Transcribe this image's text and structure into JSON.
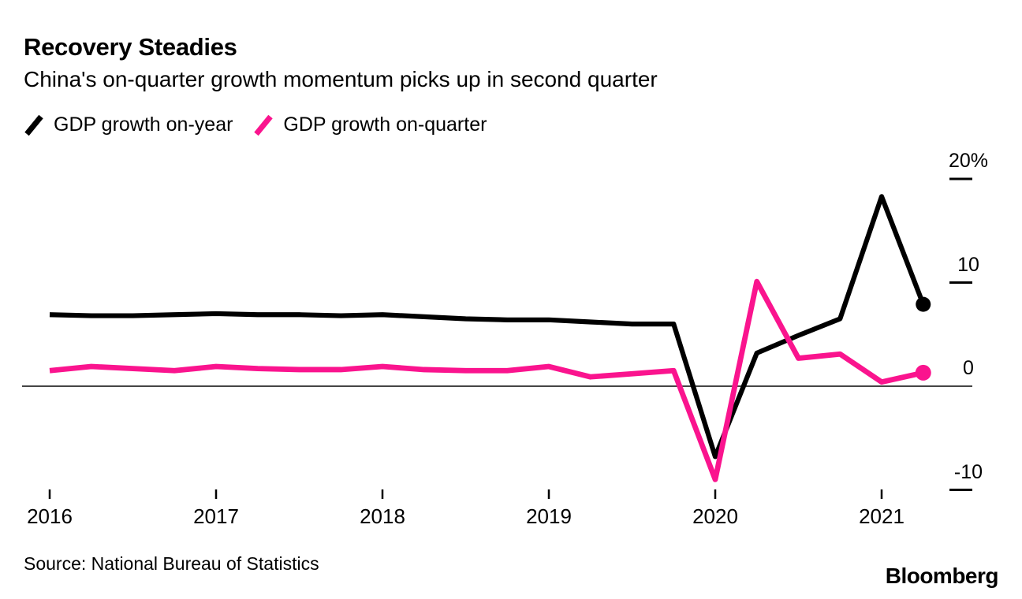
{
  "header": {
    "title": "Recovery Steadies",
    "subtitle": "China's on-quarter growth momentum picks up in second quarter"
  },
  "legend": [
    {
      "label": "GDP growth on-year",
      "color": "#000000"
    },
    {
      "label": "GDP growth on-quarter",
      "color": "#fa148e"
    }
  ],
  "footer": {
    "source": "Source: National Bureau of Statistics",
    "brand": "Bloomberg"
  },
  "colors": {
    "on_year_line": "#000000",
    "on_quarter_line": "#fa148e",
    "zero_line": "#454545",
    "tick": "#000000"
  },
  "chart_data": {
    "type": "line",
    "title": "Recovery Steadies",
    "subtitle": "China's on-quarter growth momentum picks up in second quarter",
    "x": [
      "2016 Q1",
      "2016 Q2",
      "2016 Q3",
      "2016 Q4",
      "2017 Q1",
      "2017 Q2",
      "2017 Q3",
      "2017 Q4",
      "2018 Q1",
      "2018 Q2",
      "2018 Q3",
      "2018 Q4",
      "2019 Q1",
      "2019 Q2",
      "2019 Q3",
      "2019 Q4",
      "2020 Q1",
      "2020 Q2",
      "2020 Q3",
      "2020 Q4",
      "2021 Q1",
      "2021 Q2"
    ],
    "series": [
      {
        "name": "GDP growth on-year",
        "color": "#000000",
        "end_dot": true,
        "values": [
          6.9,
          6.8,
          6.8,
          6.9,
          7.0,
          6.9,
          6.9,
          6.8,
          6.9,
          6.7,
          6.5,
          6.4,
          6.4,
          6.2,
          6.0,
          6.0,
          -6.8,
          3.2,
          4.9,
          6.5,
          18.3,
          7.9
        ]
      },
      {
        "name": "GDP growth on-quarter",
        "color": "#fa148e",
        "end_dot": true,
        "values": [
          1.5,
          1.9,
          1.7,
          1.5,
          1.9,
          1.7,
          1.6,
          1.6,
          1.9,
          1.6,
          1.5,
          1.5,
          1.9,
          0.9,
          1.2,
          1.5,
          -9.0,
          10.1,
          2.7,
          3.1,
          0.4,
          1.3
        ]
      }
    ],
    "y_ticks": [
      {
        "label": "20%",
        "value": 20
      },
      {
        "label": "10",
        "value": 10
      },
      {
        "label": "0",
        "value": 0
      },
      {
        "label": "-10",
        "value": -10
      }
    ],
    "x_ticks": [
      {
        "label": "2016",
        "index": 0
      },
      {
        "label": "2017",
        "index": 4
      },
      {
        "label": "2018",
        "index": 8
      },
      {
        "label": "2019",
        "index": 12
      },
      {
        "label": "2020",
        "index": 16
      },
      {
        "label": "2021",
        "index": 20
      }
    ],
    "ylim": [
      -12,
      22
    ],
    "grid": "zero-line-only",
    "legend_position": "top-left",
    "unit": "percent"
  }
}
